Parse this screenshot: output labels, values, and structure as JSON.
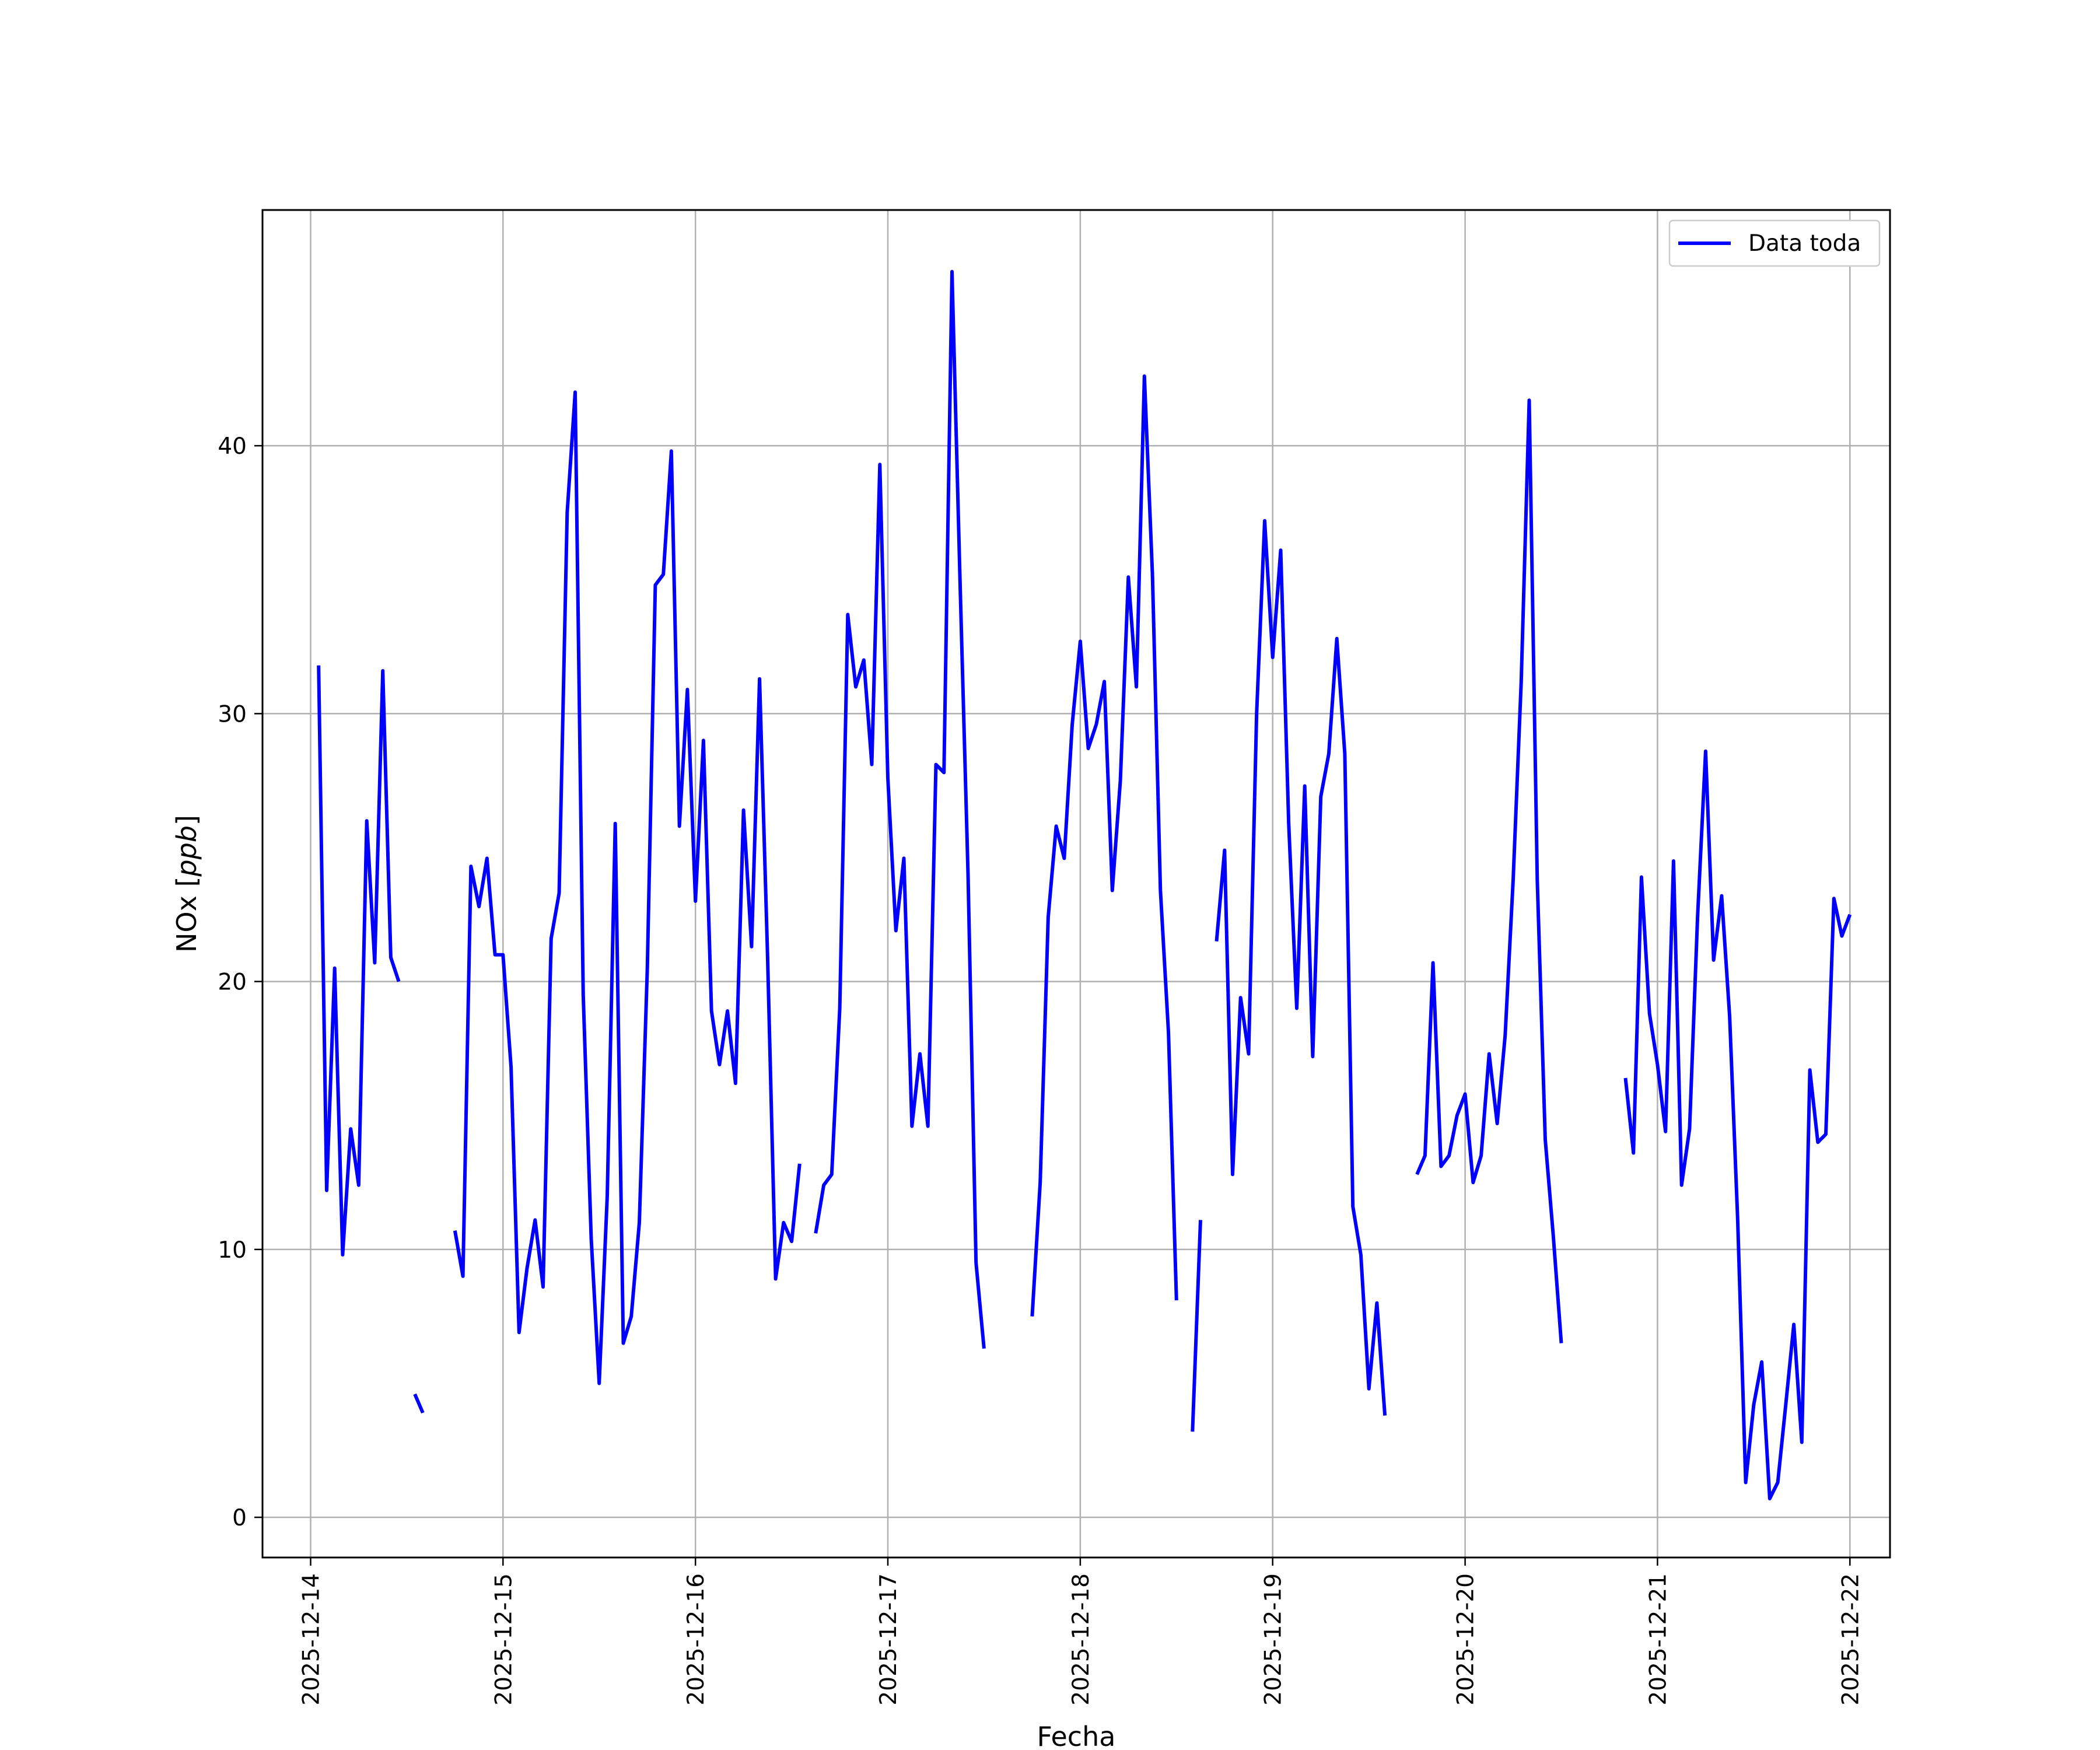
{
  "chart_data": {
    "type": "line",
    "title": "",
    "xlabel": "Fecha",
    "ylabel": "NOx [ppb]",
    "ylabel_parts": {
      "prefix": "NOx [",
      "unit": "ppb",
      "suffix": "]"
    },
    "xlim": [
      "2025-12-13 18:00",
      "2025-12-22 05:00"
    ],
    "ylim": [
      -1.5,
      48.8
    ],
    "grid": true,
    "legend": {
      "position": "upper right",
      "label": "Data toda"
    },
    "x_ticks": [
      "2025-12-14",
      "2025-12-15",
      "2025-12-16",
      "2025-12-17",
      "2025-12-18",
      "2025-12-19",
      "2025-12-20",
      "2025-12-21",
      "2025-12-22"
    ],
    "y_ticks": [
      0,
      10,
      20,
      30,
      40
    ],
    "series": [
      {
        "name": "Data toda",
        "color": "#0000ff",
        "segments": [
          [
            [
              "2025-12-14 01:00",
              31.8
            ],
            [
              "2025-12-14 02:00",
              12.2
            ],
            [
              "2025-12-14 03:00",
              20.5
            ],
            [
              "2025-12-14 04:00",
              9.8
            ],
            [
              "2025-12-14 05:00",
              14.5
            ],
            [
              "2025-12-14 06:00",
              12.4
            ],
            [
              "2025-12-14 07:00",
              26.0
            ],
            [
              "2025-12-14 08:00",
              20.7
            ],
            [
              "2025-12-14 09:00",
              31.6
            ],
            [
              "2025-12-14 10:00",
              20.9
            ],
            [
              "2025-12-14 11:00",
              20.0
            ]
          ],
          [
            [
              "2025-12-14 13:00",
              4.6
            ],
            [
              "2025-12-14 14:00",
              3.9
            ]
          ],
          [
            [
              "2025-12-14 18:00",
              10.7
            ],
            [
              "2025-12-14 19:00",
              9.0
            ],
            [
              "2025-12-14 20:00",
              24.3
            ],
            [
              "2025-12-14 21:00",
              22.8
            ],
            [
              "2025-12-14 22:00",
              24.6
            ],
            [
              "2025-12-14 23:00",
              21.0
            ],
            [
              "2025-12-15 00:00",
              21.0
            ],
            [
              "2025-12-15 01:00",
              16.8
            ],
            [
              "2025-12-15 02:00",
              6.9
            ],
            [
              "2025-12-15 03:00",
              9.3
            ],
            [
              "2025-12-15 04:00",
              11.1
            ],
            [
              "2025-12-15 05:00",
              8.6
            ],
            [
              "2025-12-15 06:00",
              21.6
            ],
            [
              "2025-12-15 07:00",
              23.3
            ],
            [
              "2025-12-15 08:00",
              37.5
            ],
            [
              "2025-12-15 09:00",
              42.0
            ],
            [
              "2025-12-15 10:00",
              19.5
            ],
            [
              "2025-12-15 11:00",
              10.4
            ],
            [
              "2025-12-15 12:00",
              5.0
            ],
            [
              "2025-12-15 13:00",
              12.0
            ],
            [
              "2025-12-15 14:00",
              25.9
            ],
            [
              "2025-12-15 15:00",
              6.5
            ],
            [
              "2025-12-15 16:00",
              7.5
            ],
            [
              "2025-12-15 17:00",
              11.0
            ],
            [
              "2025-12-15 18:00",
              20.5
            ],
            [
              "2025-12-15 19:00",
              34.8
            ],
            [
              "2025-12-15 20:00",
              35.2
            ],
            [
              "2025-12-15 21:00",
              39.8
            ],
            [
              "2025-12-15 22:00",
              25.8
            ],
            [
              "2025-12-15 23:00",
              30.9
            ],
            [
              "2025-12-16 00:00",
              23.0
            ],
            [
              "2025-12-16 01:00",
              29.0
            ],
            [
              "2025-12-16 02:00",
              18.9
            ],
            [
              "2025-12-16 03:00",
              16.9
            ],
            [
              "2025-12-16 04:00",
              18.9
            ],
            [
              "2025-12-16 05:00",
              16.2
            ],
            [
              "2025-12-16 06:00",
              26.4
            ],
            [
              "2025-12-16 07:00",
              21.3
            ],
            [
              "2025-12-16 08:00",
              31.3
            ],
            [
              "2025-12-16 09:00",
              20.9
            ],
            [
              "2025-12-16 10:00",
              8.9
            ],
            [
              "2025-12-16 11:00",
              11.0
            ],
            [
              "2025-12-16 12:00",
              10.3
            ],
            [
              "2025-12-16 13:00",
              13.2
            ]
          ],
          [
            [
              "2025-12-16 15:00",
              10.6
            ],
            [
              "2025-12-16 16:00",
              12.4
            ],
            [
              "2025-12-16 17:00",
              12.8
            ],
            [
              "2025-12-16 18:00",
              19.0
            ],
            [
              "2025-12-16 19:00",
              33.7
            ],
            [
              "2025-12-16 20:00",
              31.0
            ],
            [
              "2025-12-16 21:00",
              32.0
            ],
            [
              "2025-12-16 22:00",
              28.1
            ],
            [
              "2025-12-16 23:00",
              39.3
            ],
            [
              "2025-12-17 00:00",
              27.6
            ],
            [
              "2025-12-17 01:00",
              21.9
            ],
            [
              "2025-12-17 02:00",
              24.6
            ],
            [
              "2025-12-17 03:00",
              14.6
            ],
            [
              "2025-12-17 04:00",
              17.3
            ],
            [
              "2025-12-17 05:00",
              14.6
            ],
            [
              "2025-12-17 06:00",
              28.1
            ],
            [
              "2025-12-17 07:00",
              27.8
            ],
            [
              "2025-12-17 08:00",
              46.5
            ],
            [
              "2025-12-17 09:00",
              35.0
            ],
            [
              "2025-12-17 10:00",
              24.0
            ],
            [
              "2025-12-17 11:00",
              9.5
            ],
            [
              "2025-12-17 12:00",
              6.3
            ]
          ],
          [
            [
              "2025-12-17 18:00",
              7.5
            ],
            [
              "2025-12-17 19:00",
              12.5
            ],
            [
              "2025-12-17 20:00",
              22.4
            ],
            [
              "2025-12-17 21:00",
              25.8
            ],
            [
              "2025-12-17 22:00",
              24.6
            ],
            [
              "2025-12-17 23:00",
              29.6
            ],
            [
              "2025-12-18 00:00",
              32.7
            ],
            [
              "2025-12-18 01:00",
              28.7
            ],
            [
              "2025-12-18 02:00",
              29.6
            ],
            [
              "2025-12-18 03:00",
              31.2
            ],
            [
              "2025-12-18 04:00",
              23.4
            ],
            [
              "2025-12-18 05:00",
              27.5
            ],
            [
              "2025-12-18 06:00",
              35.1
            ],
            [
              "2025-12-18 07:00",
              31.0
            ],
            [
              "2025-12-18 08:00",
              42.6
            ],
            [
              "2025-12-18 09:00",
              35.2
            ],
            [
              "2025-12-18 10:00",
              23.4
            ],
            [
              "2025-12-18 11:00",
              18.1
            ],
            [
              "2025-12-18 12:00",
              8.1
            ]
          ],
          [
            [
              "2025-12-18 14:00",
              3.2
            ],
            [
              "2025-12-18 15:00",
              11.1
            ]
          ],
          [
            [
              "2025-12-18 17:00",
              21.5
            ],
            [
              "2025-12-18 18:00",
              24.9
            ],
            [
              "2025-12-18 19:00",
              12.8
            ],
            [
              "2025-12-18 20:00",
              19.4
            ],
            [
              "2025-12-18 21:00",
              17.3
            ],
            [
              "2025-12-18 22:00",
              30.0
            ],
            [
              "2025-12-18 23:00",
              37.2
            ],
            [
              "2025-12-19 00:00",
              32.1
            ],
            [
              "2025-12-19 01:00",
              36.1
            ],
            [
              "2025-12-19 02:00",
              25.9
            ],
            [
              "2025-12-19 03:00",
              19.0
            ],
            [
              "2025-12-19 04:00",
              27.3
            ],
            [
              "2025-12-19 05:00",
              17.2
            ],
            [
              "2025-12-19 06:00",
              26.9
            ],
            [
              "2025-12-19 07:00",
              28.5
            ],
            [
              "2025-12-19 08:00",
              32.8
            ],
            [
              "2025-12-19 09:00",
              28.5
            ],
            [
              "2025-12-19 10:00",
              11.6
            ],
            [
              "2025-12-19 11:00",
              9.8
            ],
            [
              "2025-12-19 12:00",
              4.8
            ],
            [
              "2025-12-19 13:00",
              8.0
            ],
            [
              "2025-12-19 14:00",
              3.8
            ]
          ],
          [
            [
              "2025-12-19 18:00",
              12.8
            ],
            [
              "2025-12-19 19:00",
              13.5
            ],
            [
              "2025-12-19 20:00",
              20.7
            ],
            [
              "2025-12-19 21:00",
              13.1
            ],
            [
              "2025-12-19 22:00",
              13.5
            ],
            [
              "2025-12-19 23:00",
              15.0
            ],
            [
              "2025-12-20 00:00",
              15.8
            ],
            [
              "2025-12-20 01:00",
              12.5
            ],
            [
              "2025-12-20 02:00",
              13.5
            ],
            [
              "2025-12-20 03:00",
              17.3
            ],
            [
              "2025-12-20 04:00",
              14.7
            ],
            [
              "2025-12-20 05:00",
              18.0
            ],
            [
              "2025-12-20 06:00",
              23.8
            ],
            [
              "2025-12-20 07:00",
              31.2
            ],
            [
              "2025-12-20 08:00",
              41.7
            ],
            [
              "2025-12-20 09:00",
              23.8
            ],
            [
              "2025-12-20 10:00",
              14.1
            ],
            [
              "2025-12-20 11:00",
              10.5
            ],
            [
              "2025-12-20 12:00",
              6.5
            ]
          ],
          [
            [
              "2025-12-20 20:00",
              16.4
            ],
            [
              "2025-12-20 21:00",
              13.6
            ],
            [
              "2025-12-20 22:00",
              23.9
            ],
            [
              "2025-12-20 23:00",
              18.8
            ],
            [
              "2025-12-21 00:00",
              16.9
            ],
            [
              "2025-12-21 01:00",
              14.4
            ],
            [
              "2025-12-21 02:00",
              24.5
            ],
            [
              "2025-12-21 03:00",
              12.4
            ],
            [
              "2025-12-21 04:00",
              14.5
            ],
            [
              "2025-12-21 05:00",
              22.4
            ],
            [
              "2025-12-21 06:00",
              28.6
            ],
            [
              "2025-12-21 07:00",
              20.8
            ],
            [
              "2025-12-21 08:00",
              23.2
            ],
            [
              "2025-12-21 09:00",
              18.7
            ],
            [
              "2025-12-21 10:00",
              11.1
            ],
            [
              "2025-12-21 11:00",
              1.3
            ],
            [
              "2025-12-21 12:00",
              4.2
            ],
            [
              "2025-12-21 13:00",
              5.8
            ],
            [
              "2025-12-21 14:00",
              0.7
            ],
            [
              "2025-12-21 15:00",
              1.3
            ],
            [
              "2025-12-21 16:00",
              4.2
            ],
            [
              "2025-12-21 17:00",
              7.2
            ],
            [
              "2025-12-21 18:00",
              2.8
            ],
            [
              "2025-12-21 19:00",
              16.7
            ],
            [
              "2025-12-21 20:00",
              14.0
            ],
            [
              "2025-12-21 21:00",
              14.3
            ],
            [
              "2025-12-21 22:00",
              23.1
            ],
            [
              "2025-12-21 23:00",
              21.7
            ],
            [
              "2025-12-22 00:00",
              22.5
            ]
          ]
        ]
      }
    ]
  }
}
